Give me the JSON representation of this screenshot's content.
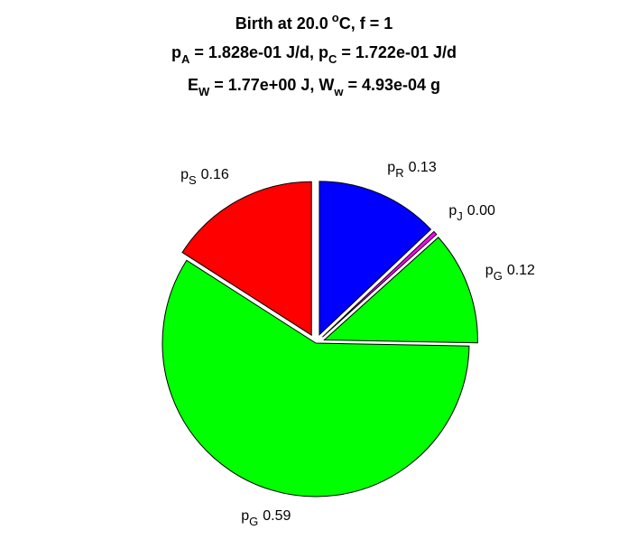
{
  "chart_data": {
    "type": "pie",
    "title": [
      [
        "Birth at 20.0",
        "o",
        "C, f = 1"
      ],
      [
        "p",
        "A",
        "= 1.828e-01 J/d, p",
        "C",
        "= 1.722e-01 J/d"
      ],
      [
        "E",
        "W",
        "= 1.77e+00 J, W",
        "w",
        "= 4.93e-04 g"
      ]
    ],
    "categories": [
      [
        "p",
        "S"
      ],
      [
        "p",
        "G"
      ],
      [
        "p",
        "G"
      ],
      [
        "p",
        "J"
      ],
      [
        "p",
        "R"
      ]
    ],
    "values": [
      0.16,
      0.59,
      0.12,
      0.004,
      0.13
    ],
    "value_labels": [
      "0.16",
      "0.59",
      "0.12",
      "0.00",
      "0.13"
    ],
    "colors": [
      "#ff0000",
      "#00ff00",
      "#00ff00",
      "#ff00ff",
      "#0000ff"
    ],
    "explode": [
      1,
      0,
      1,
      1,
      1
    ]
  }
}
